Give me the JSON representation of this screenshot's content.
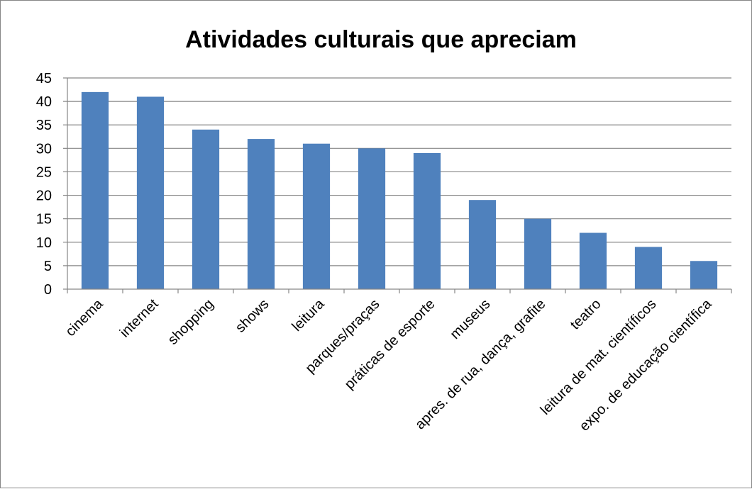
{
  "chart_data": {
    "type": "bar",
    "title": "Atividades culturais que apreciam",
    "xlabel": "",
    "ylabel": "",
    "categories": [
      "cinema",
      "internet",
      "shopping",
      "shows",
      "leitura",
      "parques/praças",
      "práticas de esporte",
      "museus",
      "apres. de rua, dança, grafite",
      "teatro",
      "leitura de mat. científicos",
      "expo. de educação científica"
    ],
    "values": [
      42,
      41,
      34,
      32,
      31,
      30,
      29,
      19,
      15,
      12,
      9,
      6
    ],
    "ylim": [
      0,
      45
    ],
    "yticks": [
      0,
      5,
      10,
      15,
      20,
      25,
      30,
      35,
      40,
      45
    ],
    "grid": true,
    "legend": "none",
    "colors": {
      "bar": "#4F81BD",
      "grid": "#868686",
      "axis": "#868686",
      "border": "#868686"
    }
  }
}
